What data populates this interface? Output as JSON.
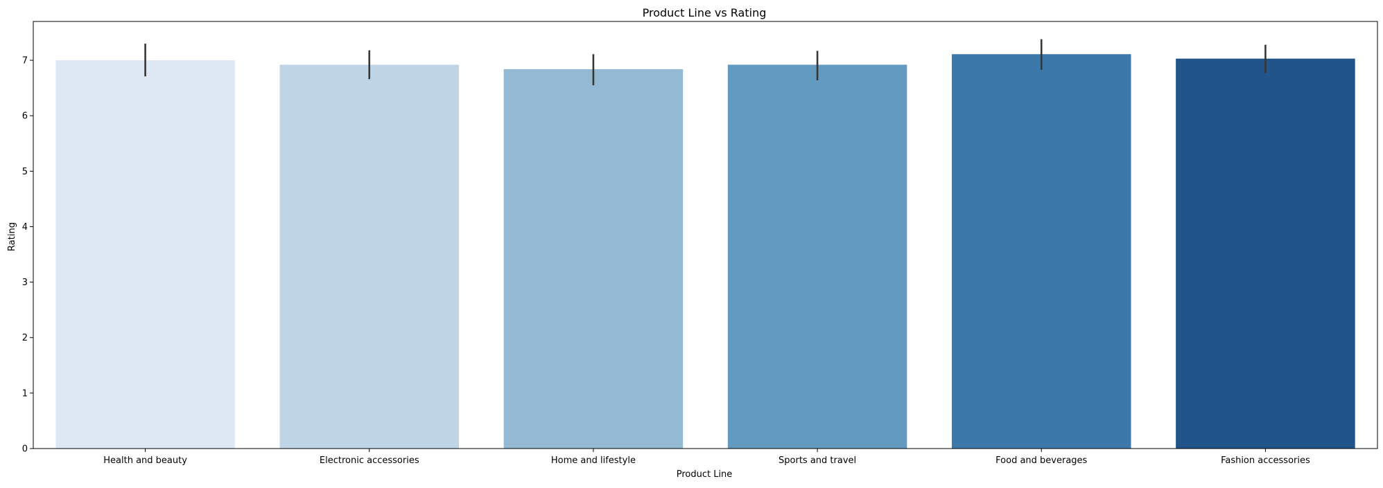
{
  "chart_data": {
    "type": "bar",
    "title": "Product Line vs Rating",
    "xlabel": "Product Line",
    "ylabel": "Rating",
    "categories": [
      "Health and beauty",
      "Electronic accessories",
      "Home and lifestyle",
      "Sports and travel",
      "Food and beverages",
      "Fashion accessories"
    ],
    "values": [
      7.0,
      6.92,
      6.84,
      6.92,
      7.11,
      7.03
    ],
    "error_low": [
      6.71,
      6.66,
      6.55,
      6.64,
      6.83,
      6.77
    ],
    "error_high": [
      7.3,
      7.18,
      7.11,
      7.17,
      7.38,
      7.28
    ],
    "ylim": [
      0,
      7.7
    ],
    "yticks": [
      0,
      1,
      2,
      3,
      4,
      5,
      6,
      7
    ],
    "colors": [
      "#dee8f4",
      "#bfd5e6",
      "#94bad3",
      "#629ac0",
      "#3c79aa",
      "#21548b"
    ],
    "errorbar_color": "#363636",
    "grid": false,
    "legend": "none"
  }
}
